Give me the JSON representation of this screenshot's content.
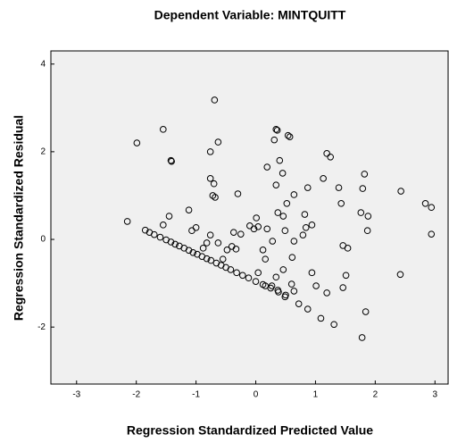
{
  "chart_data": {
    "type": "scatter",
    "title": "Dependent Variable: MINTQUITT",
    "xlabel": "Regression Standardized Predicted Value",
    "ylabel": "Regression Standardized Residual",
    "xlim": [
      -3.43,
      3.22
    ],
    "ylim": [
      -3.3,
      4.3
    ],
    "xticks": [
      -3,
      -2,
      -1,
      0,
      1,
      2,
      3
    ],
    "yticks": [
      -2,
      0,
      2,
      4
    ],
    "color": "#000000",
    "background": "#f0f0f0",
    "x": [
      -2.15,
      -1.99,
      -1.55,
      -1.42,
      -1.41,
      -0.69,
      -0.63,
      -0.76,
      -0.76,
      -0.7,
      -0.72,
      -0.68,
      -0.3,
      -1.12,
      -1.45,
      -1.55,
      0.31,
      0.34,
      0.36,
      0.54,
      0.57,
      0.4,
      0.19,
      0.45,
      0.34,
      0.64,
      0.87,
      1.19,
      1.25,
      1.13,
      1.39,
      1.43,
      1.82,
      1.79,
      1.76,
      1.88,
      1.87,
      2.43,
      2.84,
      2.94,
      2.94,
      2.42,
      1.84,
      1.78,
      1.31,
      1.09,
      0.87,
      1.19,
      1.01,
      0.94,
      1.46,
      1.51,
      1.46,
      1.54,
      0.72,
      0.49,
      0.34,
      0.46,
      0.61,
      0.64,
      0.79,
      0.82,
      0.84,
      0.94,
      0.46,
      0.37,
      0.52,
      0.49,
      0.28,
      0.19,
      0.04,
      0.01,
      -0.03,
      -0.1,
      -0.25,
      -0.37,
      -0.4,
      -0.33,
      -0.48,
      -0.76,
      -0.82,
      -0.63,
      -0.55,
      -0.88,
      -1.0,
      -1.07,
      0.12,
      0.16,
      0.04,
      0.16,
      0.27,
      0.37,
      0.6,
      0.64,
      -1.85,
      -1.78,
      -1.7,
      -1.6,
      -1.5,
      -1.42,
      -1.35,
      -1.28,
      -1.2,
      -1.12,
      -1.05,
      -0.98,
      -0.9,
      -0.82,
      -0.75,
      -0.66,
      -0.58,
      -0.5,
      -0.42,
      -0.32,
      -0.22,
      -0.12,
      0.0,
      0.12,
      0.25,
      0.38,
      0.5
    ],
    "y": [
      0.41,
      2.2,
      2.51,
      1.8,
      1.78,
      3.18,
      2.22,
      2.0,
      1.39,
      1.27,
      1.0,
      0.96,
      1.04,
      0.67,
      0.53,
      0.33,
      2.27,
      2.51,
      2.49,
      2.37,
      2.34,
      1.8,
      1.65,
      1.51,
      1.24,
      1.02,
      1.18,
      1.96,
      1.88,
      1.39,
      1.18,
      0.82,
      1.49,
      1.16,
      0.61,
      0.53,
      0.2,
      1.1,
      0.82,
      0.73,
      0.12,
      -0.8,
      -1.65,
      -2.24,
      -1.94,
      -1.8,
      -1.59,
      -1.22,
      -1.06,
      -0.76,
      -1.1,
      -0.82,
      -0.14,
      -0.2,
      -1.47,
      -1.31,
      -0.86,
      -0.69,
      -0.41,
      -0.04,
      0.1,
      0.57,
      0.27,
      0.33,
      0.53,
      0.61,
      0.82,
      0.2,
      -0.04,
      0.24,
      0.29,
      0.49,
      0.24,
      0.31,
      0.12,
      0.16,
      -0.16,
      -0.22,
      -0.24,
      0.1,
      -0.08,
      -0.08,
      -0.45,
      -0.2,
      0.27,
      0.2,
      -0.24,
      -0.45,
      -0.76,
      -1.06,
      -1.06,
      -1.16,
      -1.02,
      -1.18,
      0.21,
      0.16,
      0.11,
      0.05,
      -0.01,
      -0.06,
      -0.11,
      -0.15,
      -0.2,
      -0.25,
      -0.3,
      -0.34,
      -0.39,
      -0.44,
      -0.48,
      -0.54,
      -0.59,
      -0.64,
      -0.69,
      -0.76,
      -0.82,
      -0.88,
      -0.96,
      -1.03,
      -1.11,
      -1.2,
      -1.27
    ]
  }
}
